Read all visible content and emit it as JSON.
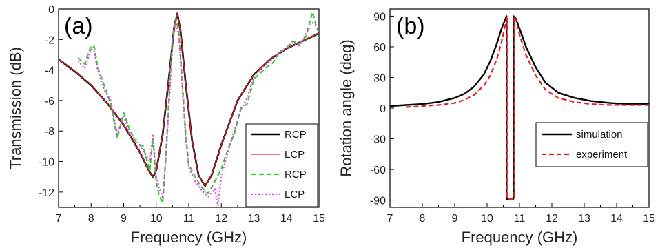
{
  "colors": {
    "black": "#000000",
    "red": "#d62728",
    "green": "#33cc33",
    "magenta": "#ee33ee",
    "sim_red_dash": "#e02020"
  },
  "chart_data": [
    {
      "type": "line",
      "panel_label": "(a)",
      "xlabel": "Frequency (GHz)",
      "ylabel": "Transmission (dB)",
      "xlim": [
        7,
        15
      ],
      "ylim": [
        -13,
        0
      ],
      "xticks": [
        "7",
        "8",
        "9",
        "10",
        "11",
        "12",
        "13",
        "14",
        "15"
      ],
      "yticks": [
        "0",
        "-2",
        "-4",
        "-6",
        "-8",
        "-10",
        "-12"
      ],
      "legend_position": "bottom-right",
      "series": [
        {
          "name": "RCP",
          "style": "solid-thick",
          "color": "#000000",
          "x": [
            7,
            7.5,
            8,
            8.5,
            9,
            9.5,
            9.8,
            9.9,
            10,
            10.2,
            10.4,
            10.55,
            10.65,
            10.75,
            10.9,
            11.1,
            11.3,
            11.5,
            11.7,
            12,
            12.5,
            13,
            13.5,
            14,
            14.5,
            15
          ],
          "y": [
            -3.3,
            -4.1,
            -5.0,
            -6.2,
            -7.6,
            -9.4,
            -10.7,
            -11.0,
            -10.6,
            -8.2,
            -4.3,
            -1.2,
            -0.3,
            -1.5,
            -4.8,
            -8.6,
            -10.9,
            -11.6,
            -10.9,
            -8.9,
            -6.0,
            -4.3,
            -3.3,
            -2.6,
            -2.1,
            -1.6
          ]
        },
        {
          "name": "LCP",
          "style": "solid-thin",
          "color": "#d62728",
          "x": [
            7,
            7.5,
            8,
            8.5,
            9,
            9.5,
            9.8,
            9.9,
            10,
            10.2,
            10.4,
            10.55,
            10.65,
            10.75,
            10.9,
            11.1,
            11.3,
            11.5,
            11.7,
            12,
            12.5,
            13,
            13.5,
            14,
            14.5,
            15
          ],
          "y": [
            -3.3,
            -4.1,
            -5.0,
            -6.2,
            -7.6,
            -9.4,
            -10.7,
            -11.0,
            -10.6,
            -8.2,
            -4.3,
            -1.2,
            -0.3,
            -1.5,
            -4.8,
            -8.6,
            -10.9,
            -11.6,
            -10.9,
            -8.9,
            -6.0,
            -4.3,
            -3.3,
            -2.6,
            -2.1,
            -1.6
          ]
        },
        {
          "name": "RCP",
          "style": "dashed",
          "color": "#33cc33",
          "x": [
            7.6,
            7.8,
            8.0,
            8.1,
            8.2,
            8.4,
            8.6,
            8.8,
            9.0,
            9.2,
            9.4,
            9.6,
            9.8,
            9.9,
            10.0,
            10.1,
            10.2,
            10.3,
            10.4,
            10.5,
            10.6,
            10.7,
            10.8,
            10.9,
            11.0,
            11.2,
            11.4,
            11.6,
            11.8,
            12.0,
            12.2,
            12.4,
            12.6,
            12.8,
            13.0,
            13.2,
            13.4,
            13.6,
            13.8,
            14.0,
            14.2,
            14.4,
            14.6,
            14.8,
            14.9,
            15.0
          ],
          "y": [
            -3.2,
            -3.6,
            -2.4,
            -2.5,
            -3.8,
            -5.0,
            -6.2,
            -8.5,
            -6.8,
            -8.0,
            -8.8,
            -9.0,
            -10.6,
            -8.5,
            -11.4,
            -12.3,
            -12.7,
            -9.5,
            -5.5,
            -1.8,
            -0.6,
            -1.6,
            -4.8,
            -8.0,
            -10.2,
            -11.0,
            -11.7,
            -12.1,
            -11.3,
            -10.5,
            -9.2,
            -8.2,
            -6.5,
            -6.2,
            -4.6,
            -4.2,
            -3.8,
            -3.5,
            -2.8,
            -2.6,
            -2.1,
            -2.3,
            -1.8,
            -0.2,
            -1.0,
            -1.6
          ]
        },
        {
          "name": "LCP",
          "style": "dotted",
          "color": "#ee33ee",
          "x": [
            7.6,
            7.8,
            8.0,
            8.1,
            8.2,
            8.4,
            8.6,
            8.8,
            9.0,
            9.2,
            9.4,
            9.6,
            9.8,
            9.9,
            10.0,
            10.1,
            10.2,
            10.3,
            10.4,
            10.5,
            10.6,
            10.7,
            10.8,
            10.9,
            11.0,
            11.2,
            11.4,
            11.6,
            11.8,
            11.9,
            12.0,
            12.2,
            12.4,
            12.6,
            12.8,
            13.0,
            13.2,
            13.4,
            13.6,
            13.8,
            14.0,
            14.2,
            14.4,
            14.6,
            14.8,
            14.9,
            15.0
          ],
          "y": [
            -3.4,
            -3.9,
            -2.6,
            -2.8,
            -4.0,
            -5.3,
            -6.0,
            -8.2,
            -7.0,
            -8.3,
            -8.6,
            -9.3,
            -10.0,
            -8.2,
            -11.0,
            -11.8,
            -12.4,
            -9.8,
            -6.0,
            -2.4,
            -0.8,
            -1.9,
            -5.2,
            -8.4,
            -10.4,
            -11.3,
            -11.9,
            -12.3,
            -11.8,
            -12.9,
            -10.9,
            -9.4,
            -8.0,
            -6.6,
            -5.8,
            -4.4,
            -4.0,
            -3.6,
            -3.2,
            -2.9,
            -2.5,
            -2.2,
            -2.4,
            -1.6,
            -0.9,
            -1.1,
            -1.4
          ]
        }
      ],
      "legend": [
        "RCP",
        "LCP",
        "RCP",
        "LCP"
      ]
    },
    {
      "type": "line",
      "panel_label": "(b)",
      "xlabel": "Frequency (GHz)",
      "ylabel": "Rotation angle (deg)",
      "xlim": [
        7,
        15
      ],
      "ylim": [
        -97,
        97
      ],
      "xticks": [
        "7",
        "8",
        "9",
        "10",
        "11",
        "12",
        "13",
        "14",
        "15"
      ],
      "yticks": [
        "90",
        "60",
        "30",
        "0",
        "-30",
        "-60",
        "-90"
      ],
      "legend_position": "bottom-right",
      "series": [
        {
          "name": "simulation",
          "style": "solid",
          "color": "#000000",
          "x": [
            7,
            7.5,
            8,
            8.5,
            9,
            9.3,
            9.6,
            9.9,
            10.1,
            10.3,
            10.45,
            10.55,
            10.6,
            10.6,
            10.62,
            10.8,
            10.82,
            10.82,
            10.88,
            11.0,
            11.2,
            11.5,
            11.8,
            12.2,
            12.7,
            13.2,
            13.8,
            14.4,
            15
          ],
          "y": [
            2,
            3,
            4,
            6,
            10,
            14,
            21,
            33,
            46,
            63,
            78,
            86,
            90,
            -88,
            -89,
            -89,
            -88,
            90,
            88,
            78,
            60,
            40,
            25,
            15,
            10,
            7,
            5,
            4,
            4
          ]
        },
        {
          "name": "experiment",
          "style": "dashed",
          "color": "#e02020",
          "x": [
            7.5,
            8,
            8.5,
            9,
            9.3,
            9.6,
            9.9,
            10.1,
            10.3,
            10.45,
            10.55,
            10.6,
            10.62,
            10.62,
            10.65,
            10.82,
            10.84,
            10.84,
            10.9,
            11.0,
            11.2,
            11.5,
            11.8,
            12.2,
            12.7,
            13.2,
            13.8,
            14.4,
            15
          ],
          "y": [
            1,
            2,
            3,
            5,
            8,
            13,
            22,
            32,
            48,
            65,
            80,
            88,
            90,
            -88,
            -89,
            -89,
            -88,
            90,
            85,
            72,
            52,
            32,
            18,
            10,
            6,
            4,
            3,
            3,
            3
          ]
        }
      ],
      "legend": [
        "simulation",
        "experiment"
      ]
    }
  ]
}
